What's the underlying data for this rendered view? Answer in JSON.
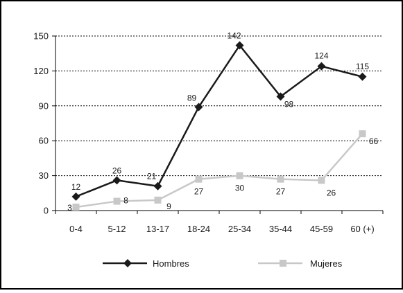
{
  "chart_data": {
    "type": "line",
    "categories": [
      "0-4",
      "5-12",
      "13-17",
      "18-24",
      "25-34",
      "35-44",
      "45-59",
      "60 (+)"
    ],
    "series": [
      {
        "name": "Hombres",
        "values": [
          12,
          26,
          21,
          89,
          142,
          98,
          124,
          115
        ],
        "labels": [
          "12",
          "26",
          "21",
          "89",
          "142",
          "98",
          "124",
          "115"
        ],
        "color": "#1a1a1a",
        "marker": "diamond"
      },
      {
        "name": "Mujeres",
        "values": [
          3,
          8,
          9,
          27,
          30,
          27,
          26,
          66
        ],
        "labels": [
          "3",
          "8",
          "9",
          "27",
          "30",
          "27",
          "26",
          "66"
        ],
        "color": "#c8c8c8",
        "marker": "square"
      }
    ],
    "yticks": [
      "0",
      "30",
      "60",
      "90",
      "120",
      "150"
    ],
    "ylim": [
      0,
      150
    ],
    "grid": "horizontal dotted",
    "legend": "bottom"
  }
}
